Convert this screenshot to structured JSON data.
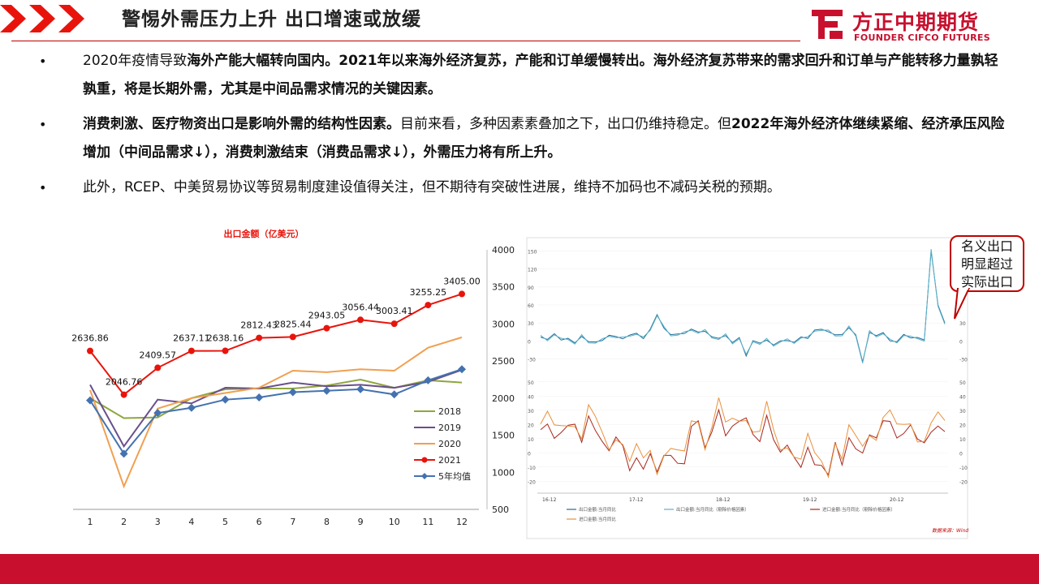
{
  "header": {
    "title": "警惕外需压力上升 出口增速或放缓",
    "logo_cn": "方正中期期货",
    "logo_en": "FOUNDER CIFCO FUTURES",
    "accent": "#c8102e"
  },
  "bullets": [
    {
      "marker": "•",
      "segments": [
        {
          "text": "2020年疫情导致",
          "bold": false
        },
        {
          "text": "海外产能大幅转向国内。2021年以来海外经济复苏，产能和订单缓慢转出。海外经济复苏带来的需求回升和订单与产能转移力量孰轻孰重，将是长期外需，尤其是中间品需求情况的关键因素。",
          "bold": true
        }
      ]
    },
    {
      "marker": "•",
      "segments": [
        {
          "text": "消费刺激、医疗物资出口是影响外需的结构性因素。",
          "bold": true
        },
        {
          "text": "目前来看，多种因素素叠加之下，出口仍维持稳定。但",
          "bold": false
        },
        {
          "text": "2022年海外经济体继续紧缩、经济承压风险增加（中间品需求↓），消费刺激结束（消费品需求↓），外需压力将有所上升。",
          "bold": true
        }
      ]
    },
    {
      "marker": "•",
      "segments": [
        {
          "text": "此外，RCEP、中美贸易协议等贸易制度建设值得关注，但不期待有突破性进展，维持不加码也不减码关税的预期。",
          "bold": false
        }
      ]
    }
  ],
  "callout": {
    "lines": [
      "名义出口",
      "明显超过",
      "实际出口"
    ]
  },
  "chart_data": [
    {
      "type": "line",
      "title": "出口金额（亿美元）",
      "categories": [
        "1",
        "2",
        "3",
        "4",
        "5",
        "6",
        "7",
        "8",
        "9",
        "10",
        "11",
        "12"
      ],
      "ylim": [
        500,
        4000
      ],
      "yticks": [
        500,
        1000,
        1500,
        2000,
        2500,
        3000,
        3500,
        4000
      ],
      "y_axis_side": "right",
      "legend_position": "bottom-right",
      "grid": false,
      "series": [
        {
          "name": "2018",
          "color": "#8fa63c",
          "marker": "none",
          "values": [
            2000,
            1730,
            1740,
            2000,
            2120,
            2130,
            2130,
            2170,
            2250,
            2140,
            2240,
            2210
          ]
        },
        {
          "name": "2019",
          "color": "#6a4f8c",
          "marker": "none",
          "values": [
            2180,
            1350,
            1980,
            1930,
            2140,
            2130,
            2210,
            2160,
            2180,
            2140,
            2220,
            2380
          ]
        },
        {
          "name": "2020",
          "color": "#f0a050",
          "marker": "none",
          "values": [
            2110,
            810,
            1860,
            2000,
            2070,
            2140,
            2370,
            2350,
            2390,
            2370,
            2680,
            2820
          ]
        },
        {
          "name": "2021",
          "color": "#e8140c",
          "marker": "circle",
          "values": [
            2636.86,
            2046.76,
            2409.57,
            2637.11,
            2638.16,
            2812.43,
            2825.44,
            2943.05,
            3056.44,
            3003.41,
            3255.25,
            3405.0
          ],
          "labels": [
            "2636.86",
            "2046.76",
            "2409.57",
            "2637.11",
            "2638.16",
            "2812.43",
            "2825.44",
            "2943.05",
            "3056.44",
            "3003.41",
            "3255.25",
            "3405.00"
          ]
        },
        {
          "name": "5年均值",
          "color": "#4472b0",
          "marker": "diamond",
          "values": [
            1970,
            1250,
            1800,
            1870,
            1980,
            2010,
            2080,
            2100,
            2120,
            2050,
            2240,
            2390
          ]
        }
      ]
    },
    {
      "type": "line",
      "title": "",
      "x_tick_labels": [
        "16-12",
        "17-12",
        "18-12",
        "19-12",
        "20-12"
      ],
      "panels": [
        {
          "ylim": [
            -40,
            160
          ],
          "yticks_left": [
            "150",
            "120",
            "90",
            "60",
            "30",
            "0",
            "-30"
          ],
          "yticks_right": [
            "30",
            "0",
            "-30"
          ],
          "series": [
            {
              "name": "出口金额:当月同比",
              "color": "#1f6f9a"
            },
            {
              "name": "出口金额:当月同比（剔除价格因素）",
              "color": "#5ab0c8"
            }
          ]
        },
        {
          "ylim": [
            -25,
            55
          ],
          "yticks_left": [
            "50",
            "40",
            "30",
            "20",
            "10",
            "0",
            "-10",
            "-20"
          ],
          "yticks_right": [
            "50",
            "40",
            "30",
            "20",
            "10",
            "0",
            "-10",
            "-20"
          ],
          "series": [
            {
              "name": "进口金额:当月同比（剔除价格因素）",
              "color": "#a8261c"
            },
            {
              "name": "进口金额:当月同比",
              "color": "#e8903c"
            }
          ]
        }
      ],
      "source": "数据来源：Wind"
    }
  ]
}
